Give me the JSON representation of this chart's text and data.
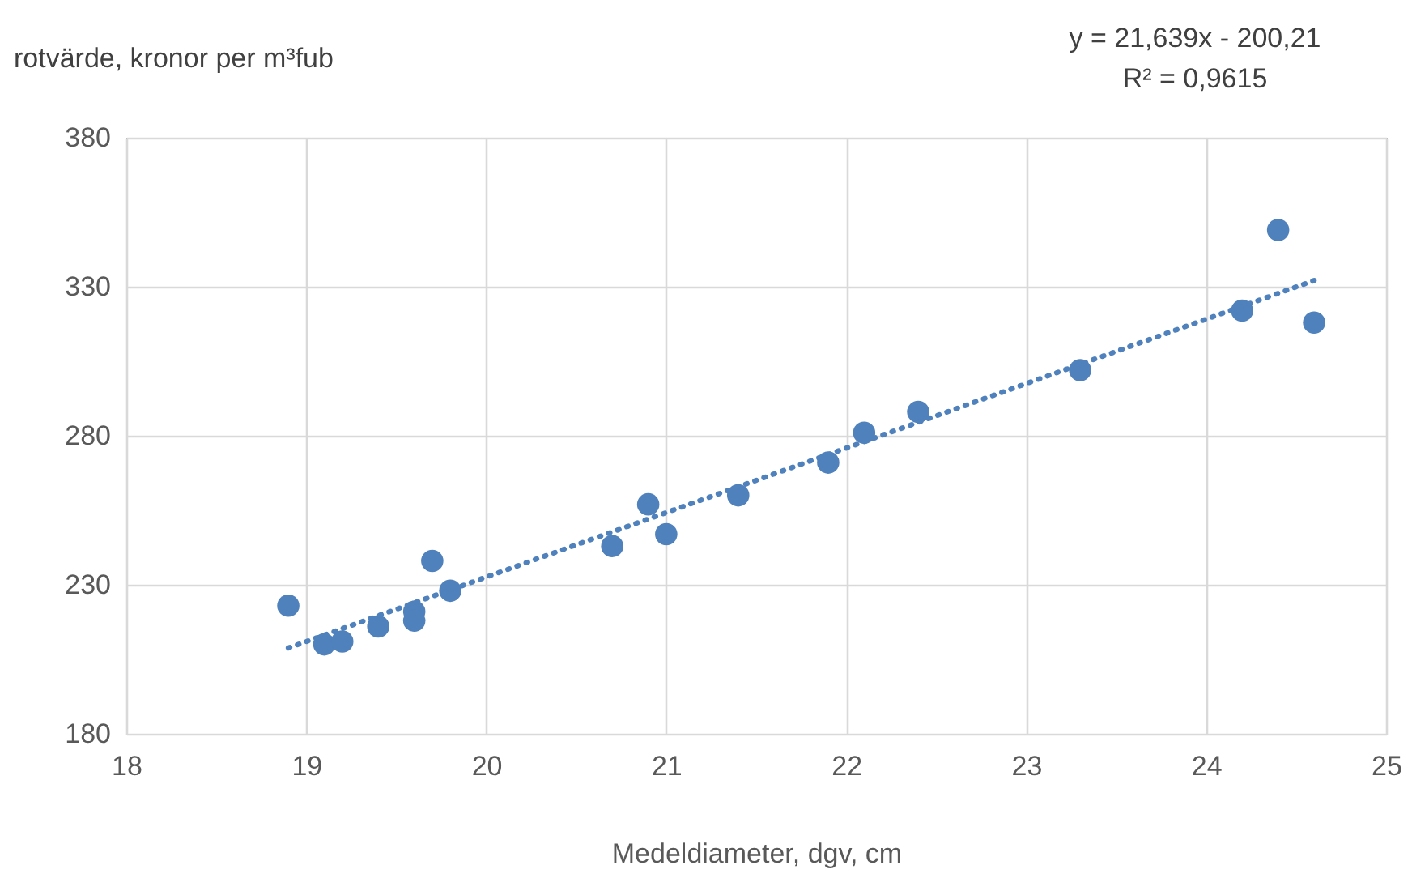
{
  "chart_data": {
    "type": "scatter",
    "ylabel": "rotvärde, kronor per m³fub",
    "xlabel": "Medeldiameter, dgv, cm",
    "annotations": [
      "y = 21,639x - 200,21",
      "R² = 0,9615"
    ],
    "x": [
      18.9,
      19.1,
      19.2,
      19.4,
      19.6,
      19.6,
      19.7,
      19.8,
      20.7,
      20.9,
      21.0,
      21.4,
      21.9,
      22.1,
      22.4,
      23.3,
      24.2,
      24.4,
      24.6
    ],
    "series": [
      {
        "color": "#4f81bd",
        "marker": "circle",
        "values": [
          223,
          210,
          211,
          216,
          221,
          218,
          238,
          228,
          243,
          257,
          247,
          260,
          271,
          281,
          288,
          302,
          322,
          349,
          318
        ]
      },
      {
        "type": "line",
        "color": "#4f81bd",
        "line_style": "dotted",
        "x": [
          18.9,
          24.6
        ],
        "values": [
          208.8,
          332.1
        ]
      }
    ],
    "xlim": [
      18,
      25
    ],
    "xticks": [
      18,
      19,
      20,
      21,
      22,
      23,
      24,
      25
    ],
    "ylim": [
      180,
      380
    ],
    "yticks": [
      180,
      230,
      280,
      330,
      380
    ],
    "grid": true
  }
}
